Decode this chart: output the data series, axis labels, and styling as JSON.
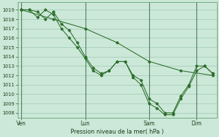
{
  "title": "",
  "xlabel": "Pression niveau de la mer( hPa )",
  "ylabel": "",
  "background_color": "#cce8d8",
  "grid_color": "#9dc8b0",
  "line_color": "#2d6e2d",
  "spine_color": "#6aaa7a",
  "ylim": [
    1007.5,
    1019.8
  ],
  "yticks": [
    1008,
    1009,
    1010,
    1011,
    1012,
    1013,
    1014,
    1015,
    1016,
    1017,
    1018,
    1019
  ],
  "xtick_labels": [
    "Ven",
    "Lun",
    "Sam",
    "Dim"
  ],
  "xtick_positions": [
    0,
    8,
    16,
    22
  ],
  "series1_x": [
    0,
    1,
    2,
    3,
    4,
    5,
    6,
    7,
    8,
    9,
    10,
    11,
    12,
    13,
    14,
    15,
    16,
    17,
    18,
    19,
    20,
    21,
    22,
    23,
    24
  ],
  "series1": [
    1019,
    1019,
    1018.8,
    1018,
    1018.8,
    1017.5,
    1016.8,
    1015.5,
    1014.0,
    1012.8,
    1012.2,
    1012.5,
    1013.5,
    1013.5,
    1012.0,
    1011.5,
    1009.5,
    1009.0,
    1008.0,
    1008.0,
    1009.8,
    1011.0,
    1013.0,
    1013.0,
    1012.2
  ],
  "series2_x": [
    0,
    1,
    2,
    3,
    4,
    5,
    6,
    7,
    8,
    9,
    10,
    11,
    12,
    13,
    14,
    15,
    16,
    17,
    18,
    19,
    20,
    21,
    22,
    23,
    24
  ],
  "series2": [
    1019,
    1019,
    1018.2,
    1019.0,
    1018.5,
    1017.0,
    1016.0,
    1015.0,
    1013.8,
    1012.5,
    1012.0,
    1012.5,
    1013.5,
    1013.5,
    1011.8,
    1011.0,
    1009.0,
    1008.5,
    1007.8,
    1007.8,
    1009.5,
    1010.8,
    1012.5,
    1013.0,
    1012.2
  ],
  "series3_x": [
    0,
    4,
    8,
    12,
    16,
    20,
    24
  ],
  "series3": [
    1019.0,
    1018.0,
    1017.0,
    1015.5,
    1013.5,
    1012.5,
    1012.0
  ],
  "vline_positions": [
    0,
    8,
    16,
    22
  ],
  "n_points": 25
}
